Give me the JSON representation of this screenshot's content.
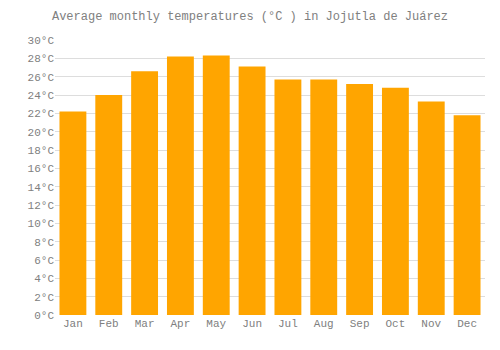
{
  "chart_data": {
    "type": "bar",
    "title": "Average monthly temperatures (°C ) in Jojutla de Juárez",
    "categories": [
      "Jan",
      "Feb",
      "Mar",
      "Apr",
      "May",
      "Jun",
      "Jul",
      "Aug",
      "Sep",
      "Oct",
      "Nov",
      "Dec"
    ],
    "values": [
      22.2,
      24.0,
      26.6,
      28.2,
      28.3,
      27.1,
      25.7,
      25.7,
      25.2,
      24.8,
      23.3,
      21.8
    ],
    "color": "#FFA500",
    "ylim": [
      0,
      30
    ],
    "yticks": [
      {
        "value": 0,
        "label": "0°C"
      },
      {
        "value": 2,
        "label": "2°C"
      },
      {
        "value": 4,
        "label": "4°C"
      },
      {
        "value": 6,
        "label": "6°C"
      },
      {
        "value": 8,
        "label": "8°C"
      },
      {
        "value": 10,
        "label": "10°C"
      },
      {
        "value": 12,
        "label": "12°C"
      },
      {
        "value": 14,
        "label": "14°C"
      },
      {
        "value": 16,
        "label": "16°C"
      },
      {
        "value": 18,
        "label": "18°C"
      },
      {
        "value": 20,
        "label": "20°C"
      },
      {
        "value": 22,
        "label": "22°C"
      },
      {
        "value": 24,
        "label": "24°C"
      },
      {
        "value": 26,
        "label": "26°C"
      },
      {
        "value": 28,
        "label": "28°C"
      },
      {
        "value": 30,
        "label": "30°C"
      }
    ],
    "grid": true
  }
}
